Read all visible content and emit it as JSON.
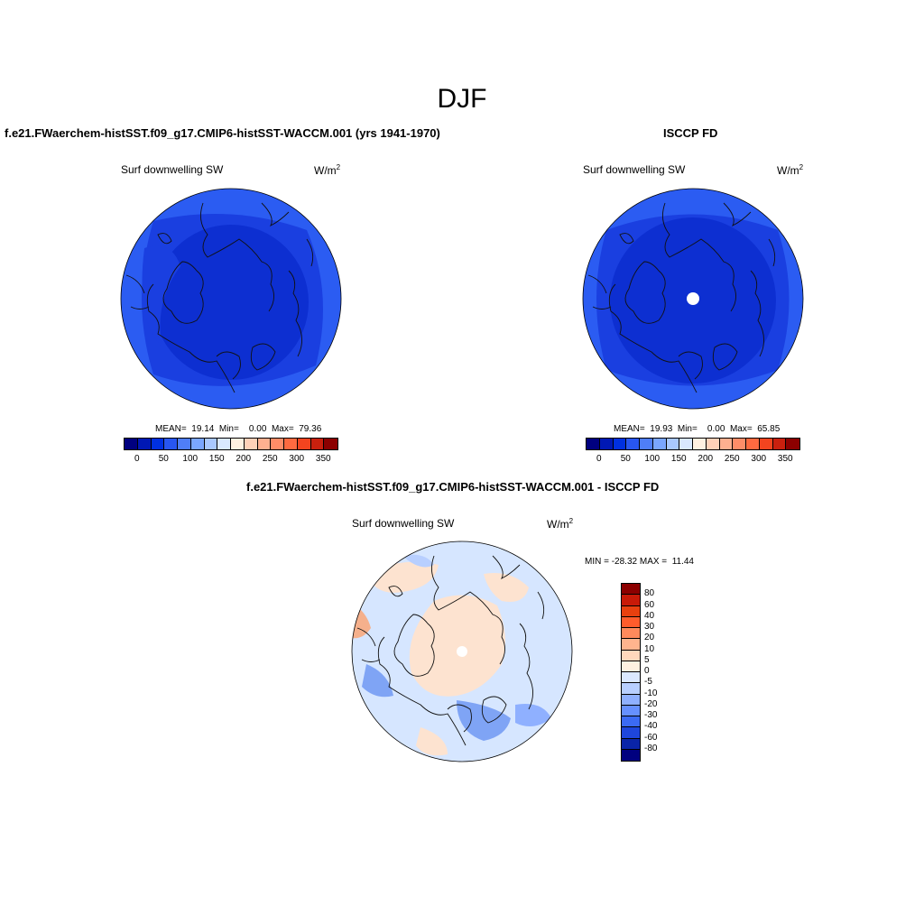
{
  "title": "DJF",
  "panels": [
    {
      "title": "f.e21.FWaerchem-histSST.f09_g17.CMIP6-histSST-WACCM.001 (yrs 1941-1970)",
      "variable": "Surf downwelling SW",
      "units_base": "W/m",
      "units_exp": "2",
      "stats": "MEAN=  19.14  Min=    0.00  Max=  79.36",
      "mean": "19.14",
      "min": "0.00",
      "max": "79.36"
    },
    {
      "title": "ISCCP FD",
      "variable": "Surf downwelling SW",
      "units_base": "W/m",
      "units_exp": "2",
      "stats": "MEAN=  19.93  Min=    0.00  Max=  65.85",
      "mean": "19.93",
      "min": "0.00",
      "max": "65.85"
    },
    {
      "title": "f.e21.FWaerchem-histSST.f09_g17.CMIP6-histSST-WACCM.001 - ISCCP FD",
      "variable": "Surf downwelling SW",
      "units_base": "W/m",
      "units_exp": "2",
      "stats": "MIN = -28.32 MAX =  11.44",
      "min": "-28.32",
      "max": "11.44"
    }
  ],
  "colorbar_abs": {
    "tick_labels": [
      "0",
      "50",
      "100",
      "150",
      "200",
      "250",
      "300",
      "350"
    ],
    "colors": [
      "#00007f",
      "#0018b4",
      "#0030e0",
      "#2856f0",
      "#4f7ef8",
      "#7aa6ff",
      "#a9c8ff",
      "#d9e8ff",
      "#fff0e0",
      "#ffd1b8",
      "#ffb090",
      "#ff8d68",
      "#ff6a40",
      "#f2441f",
      "#c9200e",
      "#8c0000"
    ]
  },
  "colorbar_diff": {
    "tick_labels": [
      "80",
      "60",
      "40",
      "30",
      "20",
      "10",
      "5",
      "0",
      "-5",
      "-10",
      "-20",
      "-30",
      "-40",
      "-60",
      "-80"
    ],
    "colors": [
      "#8c0000",
      "#c81a08",
      "#e8400f",
      "#ff5c2c",
      "#ff8a5c",
      "#ffb48e",
      "#ffd8bc",
      "#fff0e0",
      "#dbe8ff",
      "#b8cfff",
      "#8fb0ff",
      "#6690ff",
      "#3b6af4",
      "#1e46dc",
      "#0a24a8",
      "#00007f"
    ]
  },
  "map_colors": {
    "deep_blue": "#0d2fd1",
    "mid_blue": "#1a3fe0",
    "rim_blue": "#2b5cf2",
    "diff_light_blue": "#d6e6ff",
    "diff_peach": "#fde3d0",
    "diff_blue": "#7fa4f5",
    "diff_orange": "#f5b08c"
  }
}
